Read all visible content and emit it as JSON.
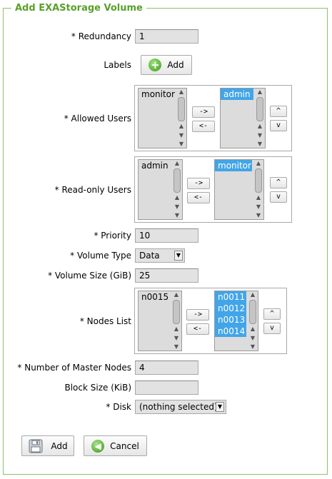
{
  "form": {
    "title": "Add EXAStorage Volume",
    "redundancy": {
      "label": "* Redundancy",
      "value": "1"
    },
    "labels": {
      "label": "Labels",
      "add_label": "Add"
    },
    "allowed_users": {
      "label": "* Allowed Users",
      "available": [
        "monitor"
      ],
      "selected": [
        "admin"
      ],
      "move_right": "->",
      "move_left": "<-",
      "up": "^",
      "down": "v"
    },
    "readonly_users": {
      "label": "* Read-only Users",
      "available": [
        "admin"
      ],
      "selected": [
        "monitor"
      ],
      "move_right": "->",
      "move_left": "<-",
      "up": "^",
      "down": "v"
    },
    "priority": {
      "label": "* Priority",
      "value": "10"
    },
    "volume_type": {
      "label": "* Volume Type",
      "value": "Data"
    },
    "volume_size": {
      "label": "* Volume Size (GiB)",
      "value": "25"
    },
    "nodes_list": {
      "label": "* Nodes List",
      "available": [
        "n0015"
      ],
      "selected": [
        "n0011",
        "n0012",
        "n0013",
        "n0014"
      ],
      "move_right": "->",
      "move_left": "<-",
      "up": "^",
      "down": "v"
    },
    "master_nodes": {
      "label": "* Number of Master Nodes",
      "value": "4"
    },
    "block_size": {
      "label": "Block Size (KiB)",
      "value": ""
    },
    "disk": {
      "label": "* Disk",
      "value": "(nothing selected)"
    },
    "add_button": "Add",
    "cancel_button": "Cancel"
  },
  "colors": {
    "accent": "#5aa02c",
    "border": "#8cc163",
    "selection": "#42a5e8"
  }
}
